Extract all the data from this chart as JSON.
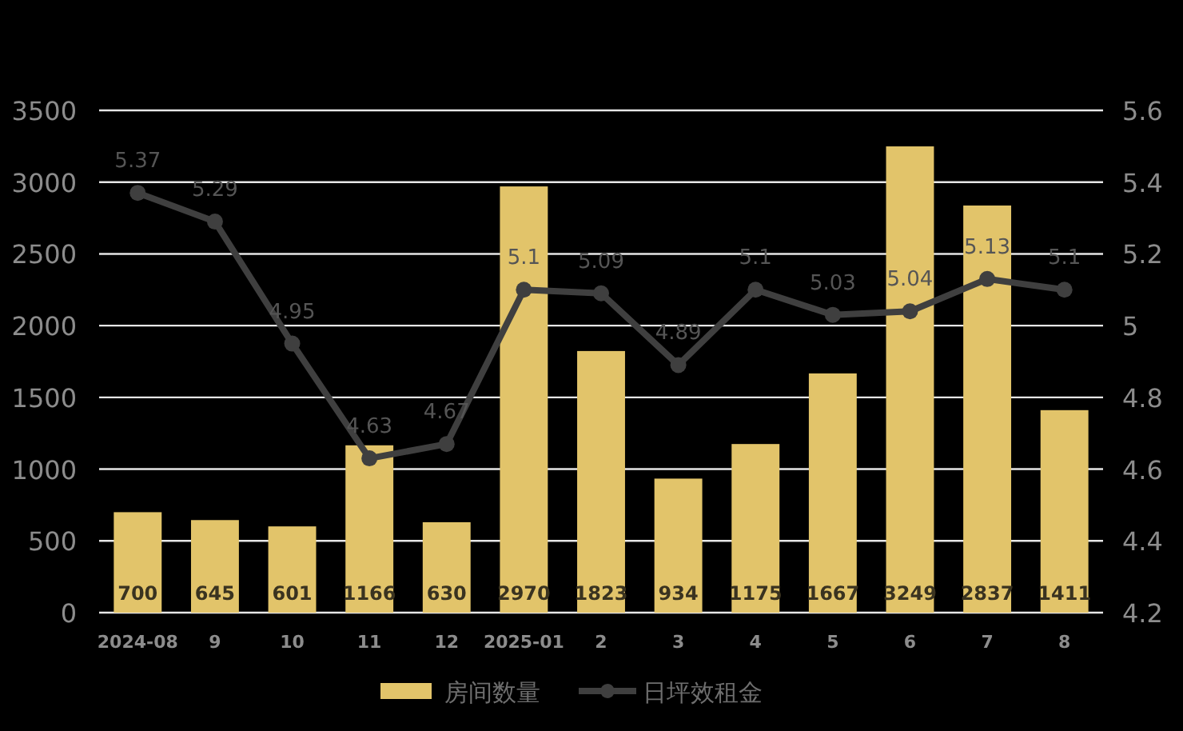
{
  "chart_data": {
    "type": "bar",
    "categories": [
      "2024-08",
      "9",
      "10",
      "11",
      "12",
      "2025-01",
      "2",
      "3",
      "4",
      "5",
      "6",
      "7",
      "8"
    ],
    "series": [
      {
        "name": "房间数量",
        "color": "#e2c46a",
        "values": [
          700,
          645,
          601,
          1166,
          630,
          2970,
          1823,
          934,
          1175,
          1667,
          3249,
          2837,
          1411
        ]
      },
      {
        "name": "日坪效租金",
        "type": "line",
        "axis": "y2",
        "color": "#3f3f3f",
        "values": [
          5.37,
          5.29,
          4.95,
          4.63,
          4.67,
          5.1,
          5.09,
          4.89,
          5.1,
          5.03,
          5.04,
          5.13,
          5.1
        ]
      }
    ],
    "ylim": [
      0,
      3500
    ],
    "yticks": [
      0,
      500,
      1000,
      1500,
      2000,
      2500,
      3000,
      3500
    ],
    "y2lim": [
      4.2,
      5.6
    ],
    "y2ticks": [
      4.2,
      4.4,
      4.6,
      4.8,
      5,
      5.2,
      5.4,
      5.6
    ],
    "grid": "y",
    "legend": "bottom",
    "data_labels": true,
    "marker": "circle"
  }
}
